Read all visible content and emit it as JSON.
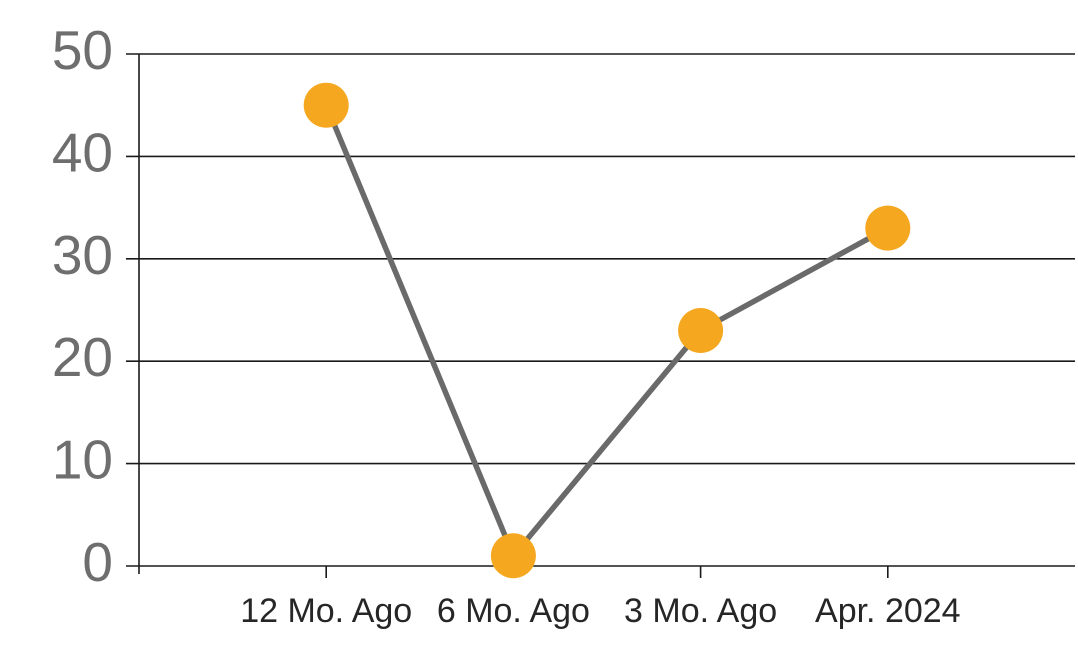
{
  "chart_data": {
    "type": "line",
    "title": "",
    "xlabel": "",
    "ylabel": "",
    "categories": [
      "12 Mo. Ago",
      "6 Mo. Ago",
      "3 Mo. Ago",
      "Apr. 2024"
    ],
    "values": [
      45,
      1,
      23,
      33
    ],
    "yticks": [
      0,
      10,
      20,
      30,
      40,
      50
    ],
    "ylim": [
      0,
      50
    ],
    "grid": true,
    "legend": false,
    "colors": {
      "marker": "#F5A81F",
      "line": "#6A6A6A",
      "grid_and_axis": "#1A1A1A",
      "ytick_label": "#6E6E6E",
      "xtick_label": "#262626",
      "background": "#FFFFFF"
    }
  }
}
